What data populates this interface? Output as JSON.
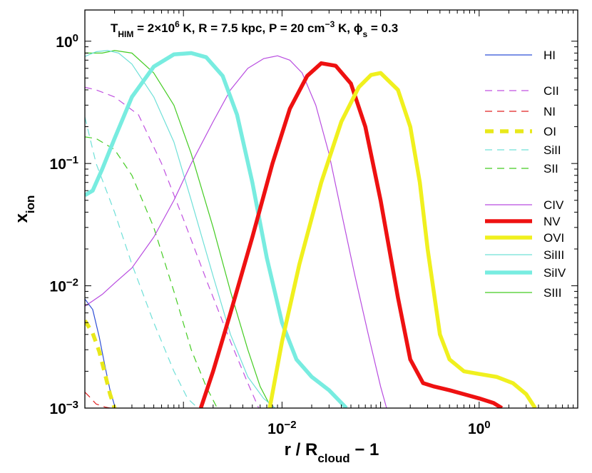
{
  "chart_data": {
    "type": "line",
    "title": {
      "parts": [
        {
          "t": "T"
        },
        {
          "t": "HIM",
          "sub": true
        },
        {
          "t": " = 2×10"
        },
        {
          "t": "6",
          "sup": true
        },
        {
          "t": " K,  R = 7.5 kpc,  P = 20 cm"
        },
        {
          "t": "−3",
          "sup": true
        },
        {
          "t": " K,  ϕ"
        },
        {
          "t": "s",
          "sub": true
        },
        {
          "t": " = 0.3"
        }
      ]
    },
    "xlabel": {
      "parts": [
        {
          "t": "r / R"
        },
        {
          "t": "cloud",
          "sub": true
        },
        {
          "t": " − 1"
        }
      ]
    },
    "ylabel": {
      "parts": [
        {
          "t": "x"
        },
        {
          "t": "ion",
          "sub": true
        }
      ]
    },
    "xscale": "log",
    "yscale": "log",
    "xlim": [
      0.0001,
      10
    ],
    "ylim": [
      0.001,
      1.8
    ],
    "xticks": [
      {
        "value": 0.01,
        "base": "10",
        "exp": "−2"
      },
      {
        "value": 1,
        "base": "10",
        "exp": "0"
      }
    ],
    "yticks": [
      {
        "value": 0.001,
        "base": "10",
        "exp": "−3"
      },
      {
        "value": 0.01,
        "base": "10",
        "exp": "−2"
      },
      {
        "value": 0.1,
        "base": "10",
        "exp": "−1"
      },
      {
        "value": 1,
        "base": "10",
        "exp": "0"
      }
    ],
    "grid": false,
    "legend_position": "right",
    "series": [
      {
        "name": "HI",
        "color": "#2e4fd6",
        "style": "solid",
        "weight": "thin",
        "x": [
          0.0001,
          0.00012,
          0.00014,
          0.00016,
          0.00018,
          0.0002
        ],
        "y": [
          0.0078,
          0.0064,
          0.0038,
          0.0022,
          0.0014,
          0.00105
        ]
      },
      {
        "name": "CII",
        "color": "#c050e0",
        "style": "dashed",
        "weight": "thin",
        "x": [
          0.0001,
          0.00013,
          0.0002,
          0.00035,
          0.0006,
          0.001,
          0.0018,
          0.003,
          0.0045,
          0.0058
        ],
        "y": [
          0.42,
          0.4,
          0.35,
          0.25,
          0.1,
          0.035,
          0.01,
          0.0035,
          0.0016,
          0.001
        ]
      },
      {
        "name": "NI",
        "color": "#e02020",
        "style": "dashed",
        "weight": "thin",
        "x": [
          0.0001,
          0.00011,
          0.00013,
          0.00016,
          0.00018
        ],
        "y": [
          0.00135,
          0.00125,
          0.00108,
          0.00102,
          0.001
        ]
      },
      {
        "name": "OI",
        "color": "#e8e81a",
        "style": "dashed",
        "weight": "thick",
        "x": [
          0.0001,
          0.00012,
          0.00014,
          0.00016,
          0.00018,
          0.0002
        ],
        "y": [
          0.0052,
          0.0041,
          0.0029,
          0.0019,
          0.0013,
          0.001
        ]
      },
      {
        "name": "SiII",
        "color": "#6fe0d8",
        "style": "dashed",
        "weight": "thin",
        "x": [
          0.0001,
          0.00013,
          0.0002,
          0.0003,
          0.0005,
          0.0008,
          0.0011,
          0.0014
        ],
        "y": [
          0.24,
          0.1,
          0.04,
          0.015,
          0.005,
          0.002,
          0.0012,
          0.001
        ]
      },
      {
        "name": "SII",
        "color": "#44cc22",
        "style": "dashed",
        "weight": "thin",
        "x": [
          0.0001,
          0.00013,
          0.0002,
          0.0003,
          0.0005,
          0.0008,
          0.0012,
          0.0017,
          0.0022
        ],
        "y": [
          0.165,
          0.16,
          0.13,
          0.08,
          0.03,
          0.009,
          0.003,
          0.0015,
          0.001
        ]
      },
      {
        "name": "CIV",
        "color": "#b84ce0",
        "style": "solid",
        "weight": "thin",
        "x": [
          0.0001,
          0.00015,
          0.0002,
          0.0003,
          0.0005,
          0.0008,
          0.0012,
          0.002,
          0.003,
          0.0045,
          0.0065,
          0.009,
          0.012,
          0.016,
          0.022,
          0.03,
          0.04,
          0.055,
          0.075,
          0.1,
          0.115
        ],
        "y": [
          0.0068,
          0.0085,
          0.0105,
          0.014,
          0.025,
          0.05,
          0.1,
          0.22,
          0.4,
          0.6,
          0.72,
          0.76,
          0.7,
          0.55,
          0.3,
          0.12,
          0.04,
          0.012,
          0.004,
          0.0015,
          0.001
        ]
      },
      {
        "name": "NV",
        "color": "#ee1111",
        "style": "solid",
        "weight": "thick",
        "x": [
          0.0015,
          0.002,
          0.003,
          0.005,
          0.008,
          0.012,
          0.018,
          0.025,
          0.035,
          0.05,
          0.07,
          0.1,
          0.15,
          0.2,
          0.27,
          0.35,
          0.5,
          0.7,
          1.0,
          1.4,
          1.7
        ],
        "y": [
          0.001,
          0.002,
          0.006,
          0.025,
          0.1,
          0.28,
          0.52,
          0.66,
          0.63,
          0.45,
          0.2,
          0.05,
          0.008,
          0.0025,
          0.0016,
          0.0015,
          0.0014,
          0.0013,
          0.0012,
          0.0011,
          0.001
        ]
      },
      {
        "name": "OVI",
        "color": "#f0f01e",
        "style": "solid",
        "weight": "thick",
        "x": [
          0.0075,
          0.01,
          0.015,
          0.025,
          0.04,
          0.06,
          0.08,
          0.1,
          0.15,
          0.2,
          0.25,
          0.3,
          0.4,
          0.5,
          0.7,
          1.0,
          1.5,
          2.2,
          3.0,
          3.7
        ],
        "y": [
          0.001,
          0.0035,
          0.015,
          0.07,
          0.22,
          0.42,
          0.53,
          0.55,
          0.4,
          0.2,
          0.07,
          0.02,
          0.004,
          0.0025,
          0.002,
          0.0019,
          0.0018,
          0.0016,
          0.0013,
          0.001
        ]
      },
      {
        "name": "SiIII",
        "color": "#6fe0d8",
        "style": "solid",
        "weight": "thin",
        "x": [
          0.0001,
          0.00013,
          0.00017,
          0.00022,
          0.0003,
          0.0005,
          0.0008,
          0.0012,
          0.002,
          0.003,
          0.0045,
          0.0065,
          0.0085
        ],
        "y": [
          0.75,
          0.82,
          0.84,
          0.8,
          0.65,
          0.35,
          0.15,
          0.05,
          0.012,
          0.004,
          0.0018,
          0.0012,
          0.001
        ]
      },
      {
        "name": "SiIV",
        "color": "#78ece0",
        "style": "solid",
        "weight": "thick",
        "x": [
          0.0001,
          0.00012,
          0.00015,
          0.0002,
          0.0003,
          0.0005,
          0.0008,
          0.0012,
          0.0017,
          0.0025,
          0.0035,
          0.005,
          0.007,
          0.01,
          0.014,
          0.02,
          0.03,
          0.045
        ],
        "y": [
          0.055,
          0.06,
          0.09,
          0.16,
          0.35,
          0.62,
          0.78,
          0.8,
          0.74,
          0.52,
          0.25,
          0.07,
          0.017,
          0.005,
          0.0025,
          0.0018,
          0.0014,
          0.001
        ]
      },
      {
        "name": "SIII",
        "color": "#44cc22",
        "style": "solid",
        "weight": "thin",
        "x": [
          0.0001,
          0.00015,
          0.0002,
          0.0003,
          0.0005,
          0.0008,
          0.0012,
          0.002,
          0.003,
          0.0045,
          0.006,
          0.0078
        ],
        "y": [
          0.8,
          0.8,
          0.84,
          0.8,
          0.55,
          0.3,
          0.12,
          0.03,
          0.009,
          0.003,
          0.0015,
          0.001
        ]
      }
    ]
  }
}
